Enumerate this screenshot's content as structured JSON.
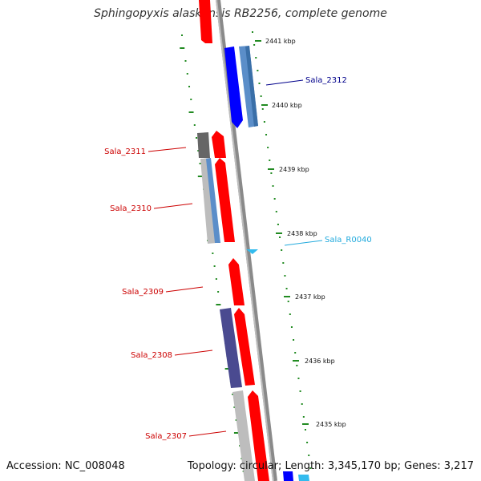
{
  "title": "Sphingopyxis alaskensis RB2256, complete genome",
  "footer": {
    "accession": "Accession: NC_008048",
    "summary": "Topology: circular; Length: 3,345,170 bp; Genes: 3,217"
  },
  "ticks": [
    "2441 kbp",
    "2440 kbp",
    "2439 kbp",
    "2438 kbp",
    "2437 kbp",
    "2436 kbp",
    "2435 kbp"
  ],
  "genes": [
    {
      "label": "Sala_2312",
      "color": "#00008B"
    },
    {
      "label": "Sala_2311",
      "color": "#CC0000"
    },
    {
      "label": "Sala_2310",
      "color": "#CC0000"
    },
    {
      "label": "Sala_R0040",
      "color": "#22AADD"
    },
    {
      "label": "Sala_2309",
      "color": "#CC0000"
    },
    {
      "label": "Sala_2308",
      "color": "#CC0000"
    },
    {
      "label": "Sala_2307",
      "color": "#CC0000"
    }
  ],
  "colors": {
    "backbone": "#8a8a8a",
    "ticks": "#228B22",
    "cds_red": "#FF0000",
    "cds_blue": "#0000FF",
    "steel_blue": "#5B8EC9",
    "dark_slate": "#4A4A90",
    "gray": "#BDBDBD",
    "dark_gray": "#666666",
    "rna_cyan": "#33BBEE"
  }
}
